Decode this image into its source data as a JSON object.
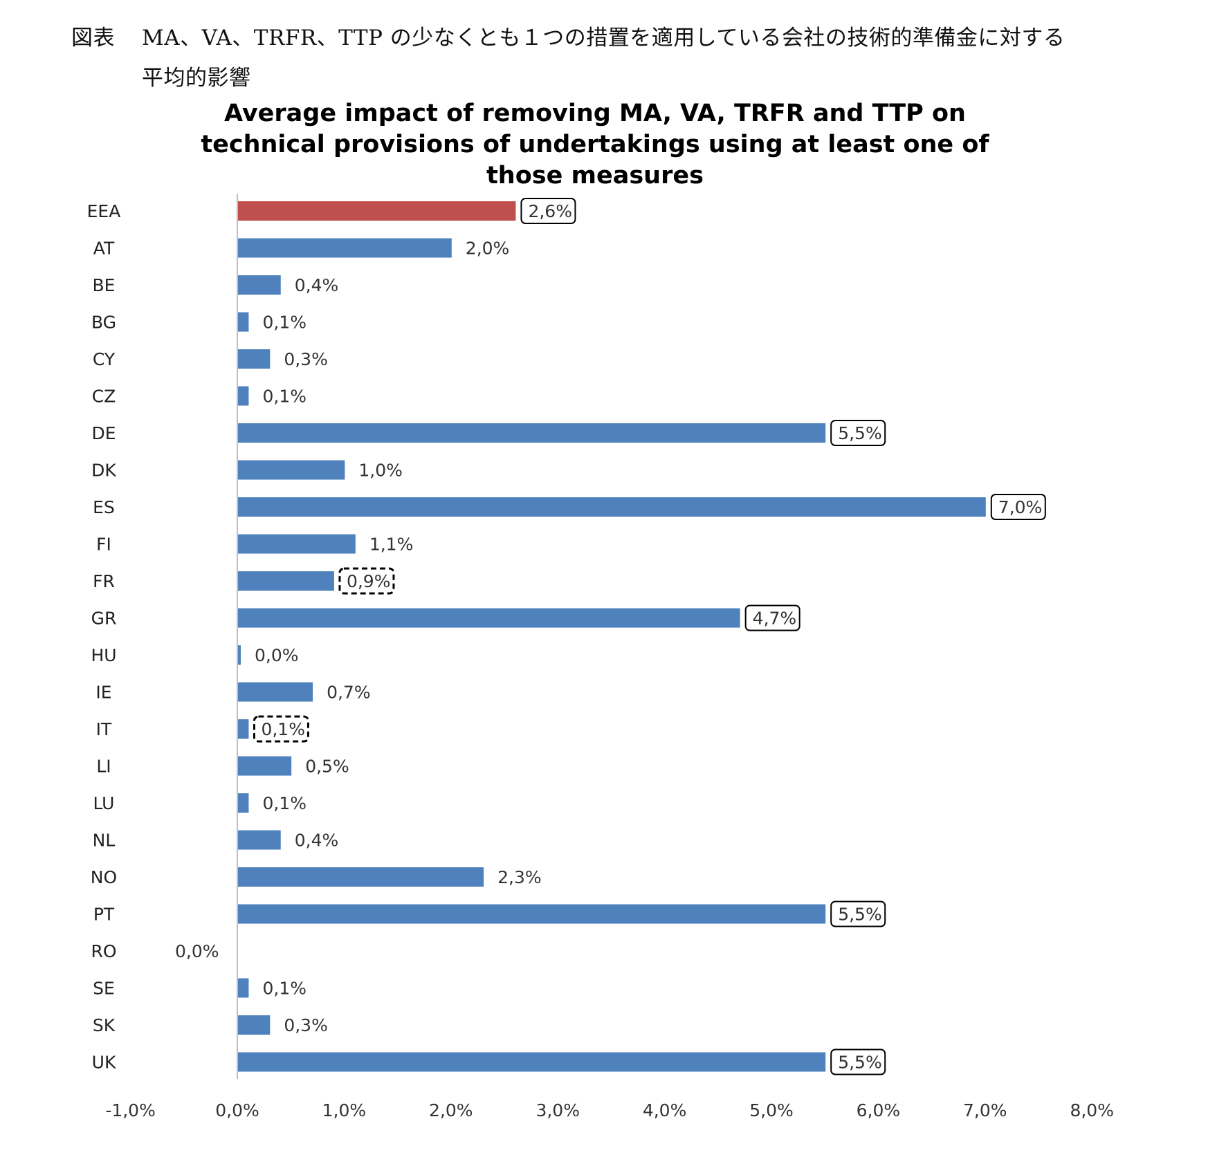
{
  "header": {
    "prefix": "図表",
    "line1": "MA、VA、TRFR、TTP の少なくとも１つの措置を適用している会社の技術的準備金に対する",
    "line2": "平均的影響"
  },
  "colors": {
    "bar": "#4f81bd",
    "highlight": "#c0504d",
    "axis": "#bfbfbf",
    "box": "#000000"
  },
  "chart_data": {
    "type": "bar",
    "orientation": "horizontal",
    "title": "Average impact of removing MA, VA, TRFR and TTP on technical provisions of undertakings using at least one of those measures",
    "title_lines": [
      "Average impact of removing MA, VA, TRFR and TTP on",
      "technical provisions of undertakings using at least one of",
      "those measures"
    ],
    "xlabel": "",
    "ylabel": "",
    "xlim": [
      -1.0,
      8.0
    ],
    "xticks": [
      -1,
      0,
      1,
      2,
      3,
      4,
      5,
      6,
      7,
      8
    ],
    "xtick_labels": [
      "-1,0%",
      "0,0%",
      "1,0%",
      "2,0%",
      "3,0%",
      "4,0%",
      "5,0%",
      "6,0%",
      "7,0%",
      "8,0%"
    ],
    "grid": false,
    "legend": "none",
    "categories": [
      "EEA",
      "AT",
      "BE",
      "BG",
      "CY",
      "CZ",
      "DE",
      "DK",
      "ES",
      "FI",
      "FR",
      "GR",
      "HU",
      "IE",
      "IT",
      "LI",
      "LU",
      "NL",
      "NO",
      "PT",
      "RO",
      "SE",
      "SK",
      "UK"
    ],
    "values": [
      2.6,
      2.0,
      0.4,
      0.1,
      0.3,
      0.1,
      5.5,
      1.0,
      7.0,
      1.1,
      0.9,
      4.7,
      0.0,
      0.7,
      0.1,
      0.5,
      0.1,
      0.4,
      2.3,
      5.5,
      0.0,
      0.1,
      0.3,
      5.5
    ],
    "labels": [
      "2,6%",
      "2,0%",
      "0,4%",
      "0,1%",
      "0,3%",
      "0,1%",
      "5,5%",
      "1,0%",
      "7,0%",
      "1,1%",
      "0,9%",
      "4,7%",
      "0,0%",
      "0,7%",
      "0,1%",
      "0,5%",
      "0,1%",
      "0,4%",
      "2,3%",
      "5,5%",
      "0,0%",
      "0,1%",
      "0,3%",
      "5,5%"
    ],
    "label_box": [
      "solid",
      "none",
      "none",
      "none",
      "none",
      "none",
      "solid",
      "none",
      "solid",
      "none",
      "dashed",
      "solid",
      "none",
      "none",
      "dashed",
      "none",
      "none",
      "none",
      "none",
      "solid",
      "none",
      "none",
      "none",
      "solid"
    ],
    "highlight": [
      "EEA"
    ]
  }
}
